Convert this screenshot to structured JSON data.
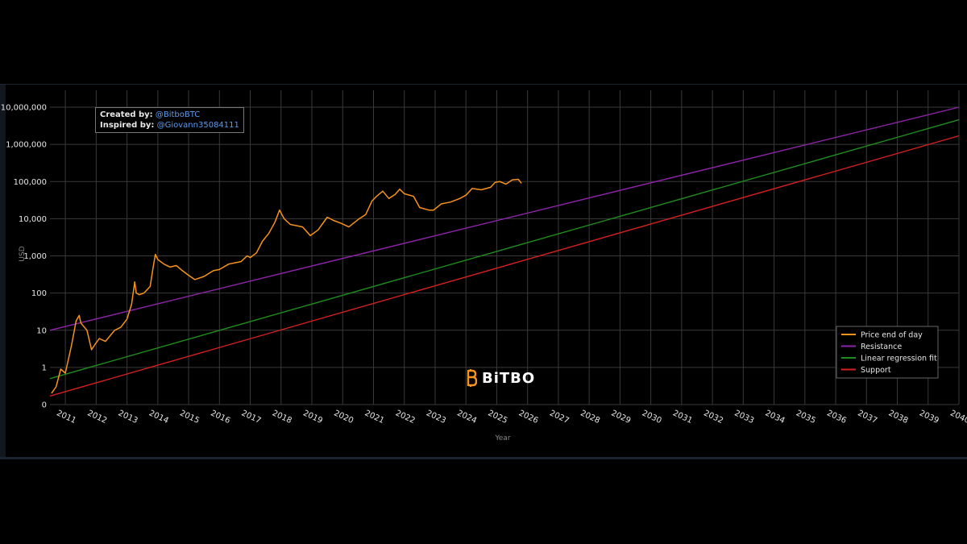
{
  "credits": {
    "created_label": "Created by:",
    "created_handle": "@BitboBTC",
    "inspired_label": "Inspired by:",
    "inspired_handle": "@Giovann35084111"
  },
  "brand": {
    "name": "BiTBO",
    "icon": "bitbo-b-logo-icon",
    "color": "#f7931a"
  },
  "colors": {
    "price": "#f7931a",
    "resistance": "#8e24aa",
    "regression": "#1e8c1e",
    "support": "#d32020",
    "grid": "#3a3a3a"
  },
  "chart_data": {
    "type": "line",
    "xlabel": "Year",
    "ylabel": "USD",
    "yscale": "log",
    "ylim": [
      0.1,
      10000000
    ],
    "xlim": [
      2010.5,
      2040.0
    ],
    "grid": true,
    "legend": "bottom-right",
    "y_ticks": [
      {
        "v": 0.1,
        "label": "0"
      },
      {
        "v": 1,
        "label": "1"
      },
      {
        "v": 10,
        "label": "10"
      },
      {
        "v": 100,
        "label": "100"
      },
      {
        "v": 1000,
        "label": "1,000"
      },
      {
        "v": 10000,
        "label": "10,000"
      },
      {
        "v": 100000,
        "label": "100,000"
      },
      {
        "v": 1000000,
        "label": "1,000,000"
      },
      {
        "v": 10000000,
        "label": "10,000,000"
      }
    ],
    "x_ticks": [
      "2011",
      "2012",
      "2013",
      "2014",
      "2015",
      "2016",
      "2017",
      "2018",
      "2019",
      "2020",
      "2021",
      "2022",
      "2023",
      "2024",
      "2025",
      "2026",
      "2027",
      "2028",
      "2029",
      "2030",
      "2031",
      "2032",
      "2033",
      "2034",
      "2035",
      "2036",
      "2037",
      "2038",
      "2039",
      "2040"
    ],
    "series": [
      {
        "name": "Price end of day",
        "color": "#f7931a",
        "x": [
          2010.55,
          2010.7,
          2010.85,
          2011.0,
          2011.2,
          2011.35,
          2011.45,
          2011.5,
          2011.55,
          2011.7,
          2011.85,
          2011.95,
          2012.1,
          2012.3,
          2012.6,
          2012.8,
          2013.0,
          2013.15,
          2013.25,
          2013.3,
          2013.4,
          2013.55,
          2013.75,
          2013.85,
          2013.92,
          2014.0,
          2014.2,
          2014.4,
          2014.6,
          2014.8,
          2015.0,
          2015.2,
          2015.5,
          2015.8,
          2016.0,
          2016.3,
          2016.5,
          2016.7,
          2016.9,
          2017.0,
          2017.2,
          2017.4,
          2017.6,
          2017.8,
          2017.95,
          2018.1,
          2018.3,
          2018.5,
          2018.7,
          2018.95,
          2019.2,
          2019.5,
          2019.7,
          2019.95,
          2020.2,
          2020.5,
          2020.75,
          2020.95,
          2021.1,
          2021.3,
          2021.5,
          2021.7,
          2021.85,
          2022.0,
          2022.3,
          2022.5,
          2022.8,
          2022.95,
          2023.2,
          2023.5,
          2023.8,
          2024.0,
          2024.2,
          2024.5,
          2024.8,
          2024.95,
          2025.1,
          2025.3,
          2025.5,
          2025.7,
          2025.8
        ],
        "y": [
          0.2,
          0.3,
          0.9,
          0.7,
          4,
          18,
          25,
          16,
          14,
          10,
          3,
          4,
          6,
          5,
          10,
          12,
          20,
          50,
          200,
          100,
          90,
          100,
          150,
          500,
          1100,
          800,
          600,
          500,
          550,
          400,
          300,
          230,
          280,
          400,
          430,
          600,
          650,
          700,
          1000,
          900,
          1200,
          2500,
          4000,
          8000,
          17000,
          10000,
          7000,
          6500,
          6000,
          3500,
          5000,
          11000,
          9000,
          7500,
          6000,
          9500,
          13000,
          30000,
          40000,
          55000,
          35000,
          45000,
          62000,
          47000,
          40000,
          20000,
          17000,
          17000,
          25000,
          28000,
          35000,
          43000,
          65000,
          60000,
          70000,
          95000,
          100000,
          85000,
          110000,
          115000,
          90000
        ]
      },
      {
        "name": "Resistance",
        "color": "#8e24aa",
        "x": [
          2010.5,
          2040.0
        ],
        "y": [
          10,
          10000000
        ]
      },
      {
        "name": "Linear regression fit",
        "color": "#1e8c1e",
        "x": [
          2010.5,
          2040.0
        ],
        "y": [
          0.5,
          4600000
        ]
      },
      {
        "name": "Support",
        "color": "#d32020",
        "x": [
          2010.5,
          2040.0
        ],
        "y": [
          0.17,
          1700000
        ]
      }
    ]
  }
}
